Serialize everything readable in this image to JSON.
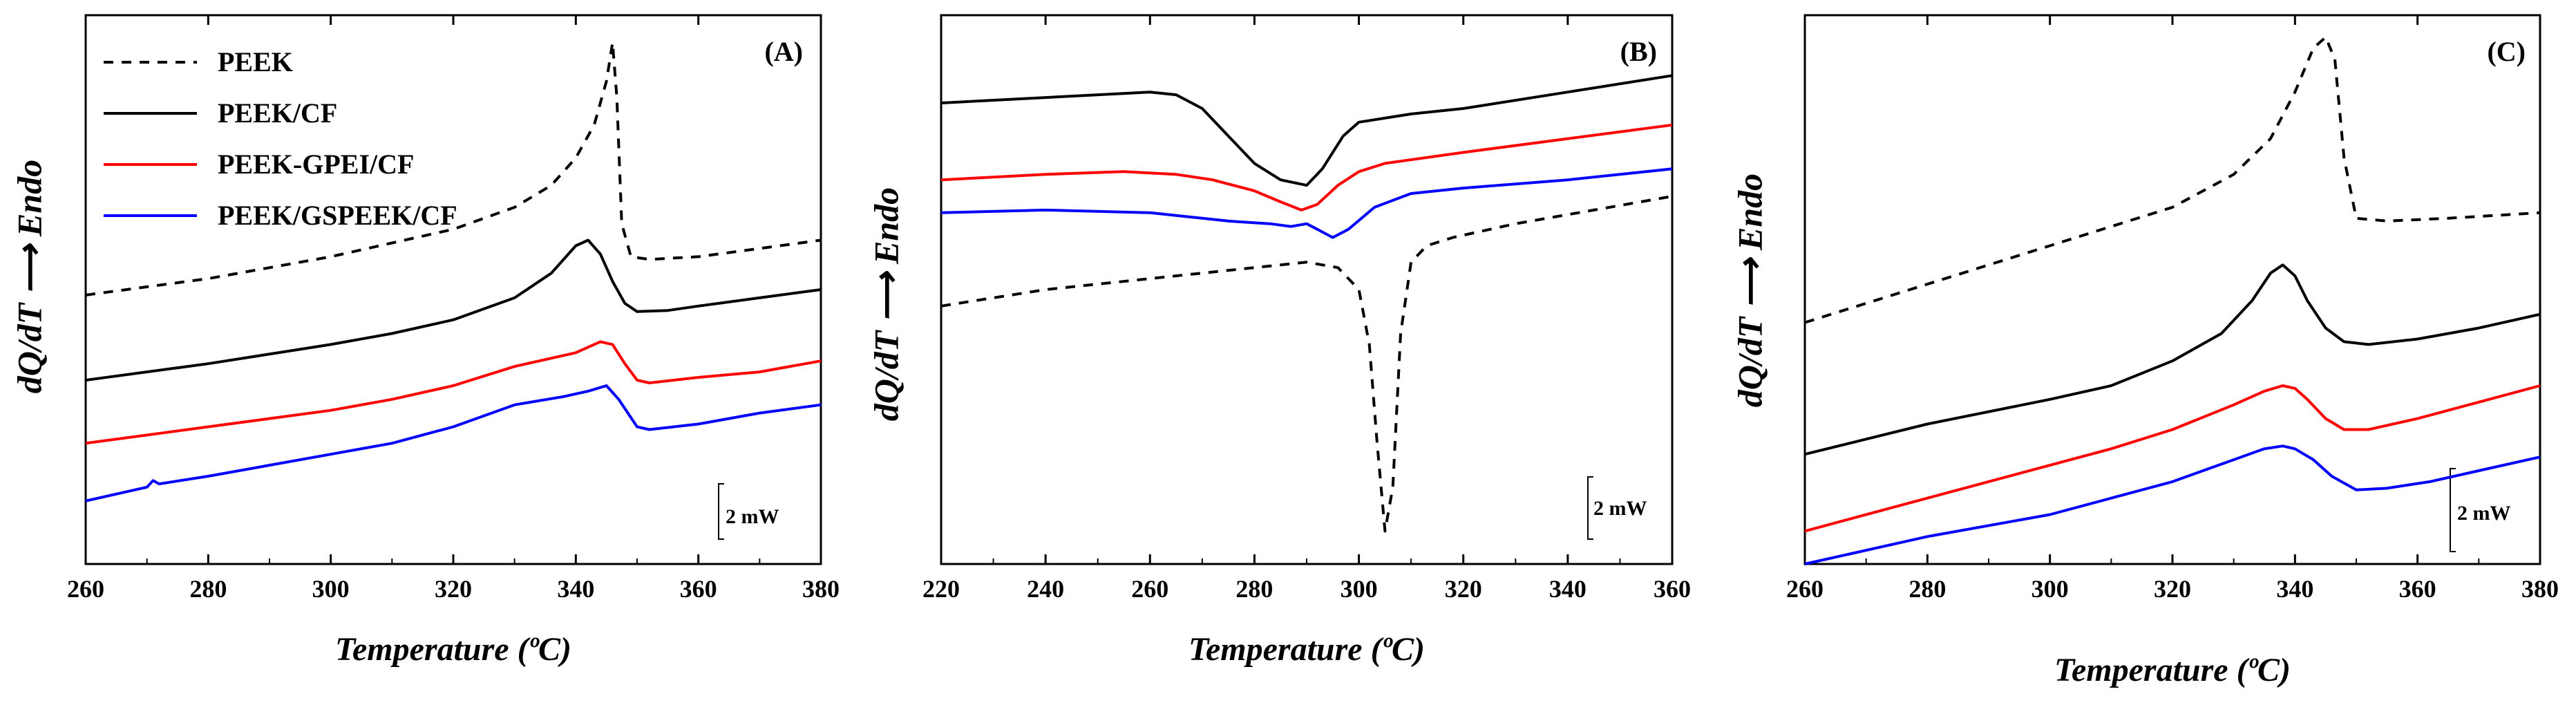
{
  "chart_data": [
    {
      "type": "line",
      "panel_label": "(A)",
      "xlabel": "Temperature (ºC)",
      "ylabel": "dQ/dT ⟶ Endo",
      "xlim": [
        260,
        380
      ],
      "xticks": [
        260,
        280,
        300,
        320,
        340,
        360,
        380
      ],
      "ylim": [
        0,
        100
      ],
      "scale_bar": "2 mW",
      "legend": [
        "PEEK",
        "PEEK/CF",
        "PEEK-GPEI/CF",
        "PEEK/GSPEEK/CF"
      ],
      "series": [
        {
          "name": "PEEK",
          "color": "#000000",
          "dash": "dashed",
          "x": [
            260,
            280,
            300,
            310,
            320,
            330,
            336,
            340,
            343,
            345,
            346,
            346.7,
            347.5,
            349,
            352,
            360,
            370,
            380
          ],
          "y": [
            49,
            52,
            56,
            58.5,
            61,
            65,
            69,
            74,
            80,
            88,
            95,
            85,
            62,
            56,
            55.5,
            56,
            57.5,
            59
          ]
        },
        {
          "name": "PEEK/CF",
          "color": "#000000",
          "dash": "solid",
          "x": [
            260,
            280,
            300,
            310,
            320,
            330,
            336,
            340,
            342,
            344,
            346,
            348,
            350,
            355,
            360,
            370,
            380
          ],
          "y": [
            33.5,
            36.5,
            40,
            42,
            44.5,
            48.5,
            53,
            58,
            59,
            56.5,
            51.5,
            47.5,
            46,
            46.2,
            47,
            48.5,
            50
          ]
        },
        {
          "name": "PEEK-GPEI/CF",
          "color": "#ff0000",
          "dash": "solid",
          "x": [
            260,
            280,
            300,
            310,
            320,
            330,
            340,
            344,
            346,
            348,
            350,
            352,
            360,
            370,
            380
          ],
          "y": [
            22,
            25,
            28,
            30,
            32.5,
            36,
            38.5,
            40.5,
            40,
            36.5,
            33.5,
            33,
            34,
            35,
            37
          ]
        },
        {
          "name": "PEEK/GSPEEK/CF",
          "color": "#0000ff",
          "dash": "solid",
          "x": [
            260,
            270,
            271,
            272,
            280,
            300,
            310,
            320,
            330,
            338,
            342,
            345,
            347,
            350,
            352,
            360,
            370,
            380
          ],
          "y": [
            11.5,
            14,
            15.2,
            14.6,
            16,
            20,
            22,
            25,
            29,
            30.5,
            31.5,
            32.5,
            30,
            25,
            24.5,
            25.5,
            27.5,
            29
          ]
        }
      ]
    },
    {
      "type": "line",
      "panel_label": "(B)",
      "xlabel": "Temperature (ºC)",
      "ylabel": "dQ/dT ⟶ Endo",
      "xlim": [
        220,
        360
      ],
      "xticks": [
        220,
        240,
        260,
        280,
        300,
        320,
        340,
        360
      ],
      "ylim": [
        0,
        100
      ],
      "scale_bar": "2 mW",
      "series": [
        {
          "name": "PEEK",
          "color": "#000000",
          "dash": "dashed",
          "x": [
            220,
            240,
            260,
            280,
            290,
            296,
            300,
            302,
            303.5,
            305,
            306.5,
            308,
            310,
            313,
            318,
            330,
            345,
            360
          ],
          "y": [
            47,
            50,
            52,
            54,
            55,
            54,
            50,
            40,
            22,
            6,
            14,
            42,
            55,
            58,
            59.5,
            62,
            64.5,
            67
          ]
        },
        {
          "name": "PEEK/CF",
          "color": "#000000",
          "dash": "solid",
          "x": [
            220,
            240,
            260,
            265,
            270,
            275,
            280,
            285,
            290,
            293,
            297,
            300,
            310,
            320,
            340,
            360
          ],
          "y": [
            84,
            85,
            86,
            85.5,
            83,
            78,
            73,
            70,
            69,
            72,
            78,
            80.5,
            82,
            83,
            86,
            89
          ]
        },
        {
          "name": "PEEK-GPEI/CF",
          "color": "#ff0000",
          "dash": "solid",
          "x": [
            220,
            240,
            255,
            265,
            272,
            280,
            285,
            289,
            292,
            296,
            300,
            305,
            320,
            340,
            360
          ],
          "y": [
            70,
            71,
            71.5,
            71,
            70,
            68,
            66,
            64.5,
            65.5,
            69,
            71.5,
            73,
            75,
            77.5,
            80
          ]
        },
        {
          "name": "PEEK/GSPEEK/CF",
          "color": "#0000ff",
          "dash": "solid",
          "x": [
            220,
            240,
            260,
            275,
            283,
            287,
            290,
            293,
            295,
            298,
            303,
            310,
            320,
            340,
            360
          ],
          "y": [
            64,
            64.5,
            64,
            62.5,
            62,
            61.5,
            62,
            60.5,
            59.5,
            61,
            65,
            67.5,
            68.5,
            70,
            72
          ]
        }
      ]
    },
    {
      "type": "line",
      "panel_label": "(C)",
      "xlabel": "Temperature (ºC)",
      "ylabel": "dQ/dT ⟶ Endo",
      "xlim": [
        260,
        380
      ],
      "xticks": [
        260,
        280,
        300,
        320,
        340,
        360,
        380
      ],
      "ylim": [
        0,
        100
      ],
      "scale_bar": "2 mW",
      "series": [
        {
          "name": "PEEK",
          "color": "#000000",
          "dash": "dashed",
          "x": [
            260,
            280,
            300,
            320,
            330,
            336,
            340,
            343,
            345,
            346.5,
            348,
            350,
            355,
            365,
            380
          ],
          "y": [
            44,
            51,
            58,
            65,
            71,
            77.5,
            86,
            94,
            96,
            92,
            74,
            63,
            62.5,
            63,
            64
          ]
        },
        {
          "name": "PEEK/CF",
          "color": "#000000",
          "dash": "solid",
          "x": [
            260,
            280,
            300,
            310,
            320,
            328,
            333,
            336,
            338,
            340,
            342,
            345,
            348,
            352,
            360,
            370,
            380
          ],
          "y": [
            20,
            25.5,
            30,
            32.5,
            37,
            42,
            48,
            53,
            54.5,
            52.5,
            48,
            43,
            40.5,
            40,
            41,
            43,
            45.5
          ]
        },
        {
          "name": "PEEK-GPEI/CF",
          "color": "#ff0000",
          "dash": "solid",
          "x": [
            260,
            280,
            300,
            310,
            320,
            330,
            335,
            338,
            340,
            342,
            345,
            348,
            352,
            360,
            370,
            380
          ],
          "y": [
            6,
            12,
            18,
            21,
            24.5,
            29,
            31.5,
            32.5,
            32,
            30,
            26.5,
            24.5,
            24.5,
            26.5,
            29.5,
            32.5
          ]
        },
        {
          "name": "PEEK/GSPEEK/CF",
          "color": "#0000ff",
          "dash": "solid",
          "x": [
            260,
            280,
            300,
            310,
            320,
            330,
            335,
            338,
            340,
            343,
            346,
            350,
            355,
            362,
            370,
            380
          ],
          "y": [
            0,
            5,
            9,
            12,
            15,
            19,
            21,
            21.5,
            21,
            19,
            16,
            13.5,
            13.8,
            15,
            17,
            19.5
          ]
        }
      ]
    }
  ]
}
